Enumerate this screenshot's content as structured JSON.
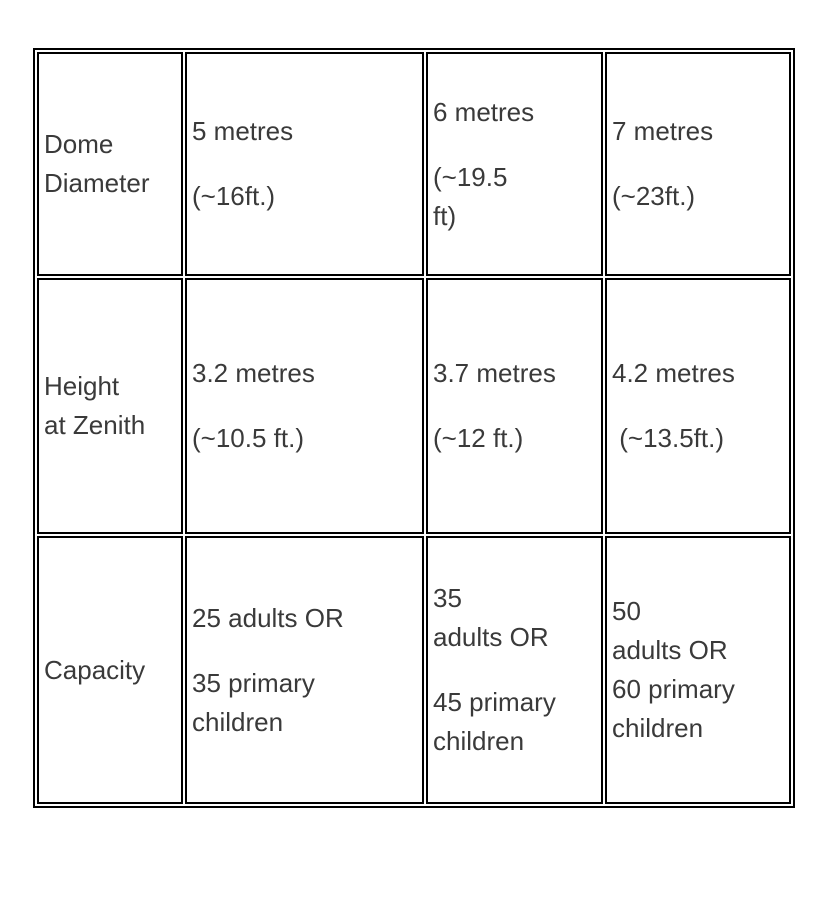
{
  "page": {
    "background": "#ffffff"
  },
  "colors": {
    "border": "#000000",
    "text": "#3a3a3a",
    "cell_background": "#ffffff"
  },
  "table": {
    "description": "Dome specifications comparison table",
    "row_labels": [
      "Dome Diameter",
      "Height at Zenith",
      "Capacity"
    ],
    "rows": [
      {
        "cells": [
          {
            "paragraphs": [
              "Dome\nDiameter"
            ]
          },
          {
            "paragraphs": [
              "5 metres",
              "(~16ft.)"
            ]
          },
          {
            "paragraphs": [
              "6 metres",
              "(~19.5\nft)"
            ]
          },
          {
            "paragraphs": [
              "7 metres",
              "(~23ft.)"
            ]
          }
        ]
      },
      {
        "cells": [
          {
            "paragraphs": [
              "Height\nat Zenith"
            ]
          },
          {
            "paragraphs": [
              "3.2 metres",
              "(~10.5 ft.)"
            ]
          },
          {
            "paragraphs": [
              "3.7 metres",
              "(~12 ft.)"
            ]
          },
          {
            "paragraphs": [
              "4.2 metres",
              " (~13.5ft.)"
            ]
          }
        ]
      },
      {
        "cells": [
          {
            "paragraphs": [
              "Capacity"
            ]
          },
          {
            "paragraphs": [
              "25 adults OR",
              "35 primary\nchildren"
            ]
          },
          {
            "paragraphs": [
              "35\nadults OR",
              "45 primary\nchildren"
            ]
          },
          {
            "paragraphs": [
              "50\nadults OR\n60 primary\nchildren"
            ]
          }
        ]
      }
    ]
  }
}
